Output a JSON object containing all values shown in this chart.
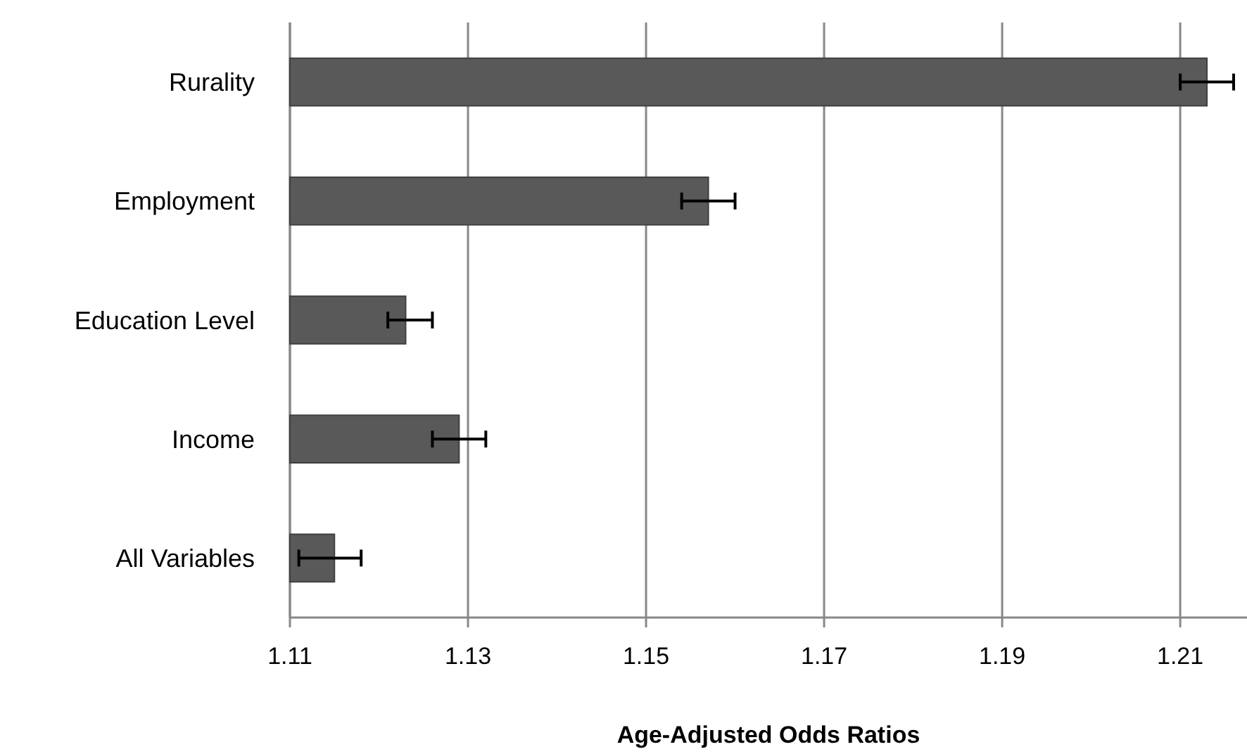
{
  "chart_data": {
    "type": "bar",
    "orientation": "horizontal",
    "xlabel": "Age-Adjusted Odds Ratios",
    "categories": [
      "Rurality",
      "Employment",
      "Education Level",
      "Income",
      "All Variables"
    ],
    "values": [
      1.213,
      1.157,
      1.123,
      1.129,
      1.115
    ],
    "errors": [
      [
        1.21,
        1.216
      ],
      [
        1.154,
        1.16
      ],
      [
        1.121,
        1.126
      ],
      [
        1.126,
        1.132
      ],
      [
        1.111,
        1.118
      ]
    ],
    "color": "#595959",
    "xlim": [
      1.11,
      1.2175
    ],
    "xticks": [
      1.11,
      1.13,
      1.15,
      1.17,
      1.19,
      1.21
    ],
    "grid": "x"
  }
}
